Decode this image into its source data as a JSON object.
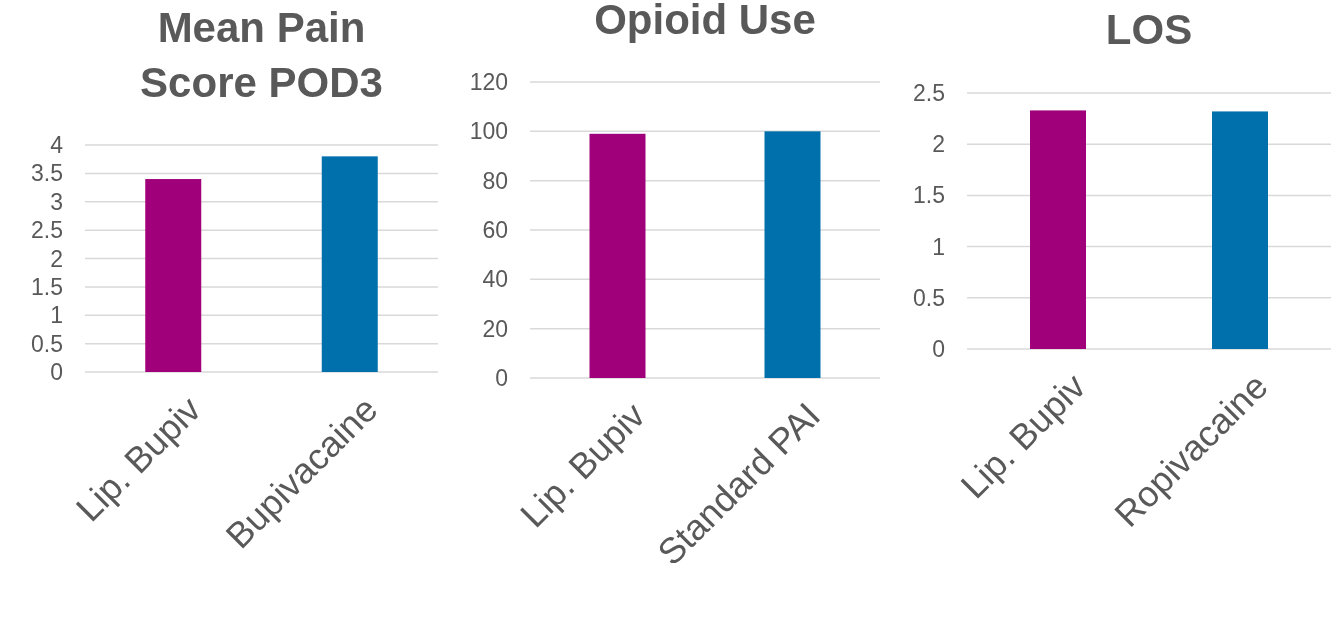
{
  "chart_data": [
    {
      "type": "bar",
      "title": "Mean Pain Score POD3",
      "categories": [
        "Lip. Bupiv",
        "Bupivacaine"
      ],
      "values": [
        3.4,
        3.8
      ],
      "colors": [
        "#a0007a",
        "#0070ad"
      ],
      "ylim": [
        0,
        4
      ],
      "yticks": [
        0,
        0.5,
        1,
        1.5,
        2,
        2.5,
        3,
        3.5,
        4
      ],
      "grid": "y"
    },
    {
      "type": "bar",
      "title": "Opioid Use",
      "categories": [
        "Lip. Bupiv",
        "Standard PAI"
      ],
      "values": [
        99,
        100
      ],
      "colors": [
        "#a0007a",
        "#0070ad"
      ],
      "ylim": [
        0,
        120
      ],
      "yticks": [
        0,
        20,
        40,
        60,
        80,
        100,
        120
      ],
      "grid": "y"
    },
    {
      "type": "bar",
      "title": "LOS",
      "categories": [
        "Lip. Bupiv",
        "Ropivacaine"
      ],
      "values": [
        2.33,
        2.32
      ],
      "colors": [
        "#a0007a",
        "#0070ad"
      ],
      "ylim": [
        0,
        2.5
      ],
      "yticks": [
        0,
        0.5,
        1,
        1.5,
        2,
        2.5
      ],
      "grid": "y"
    }
  ]
}
